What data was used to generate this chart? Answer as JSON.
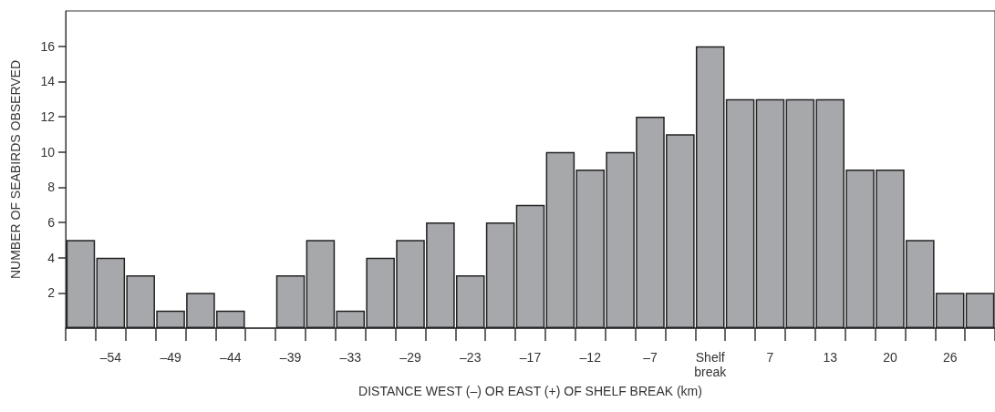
{
  "chart_data": {
    "type": "bar",
    "xlabel": "DISTANCE WEST (–) OR EAST (+) OF SHELF BREAK (km)",
    "ylabel": "NUMBER OF SEABIRDS OBSERVED",
    "categories": [
      null,
      "–54",
      null,
      "–49",
      null,
      "–44",
      null,
      "–39",
      null,
      "–33",
      null,
      "–29",
      null,
      "–23",
      null,
      "–17",
      null,
      "–12",
      null,
      "–7",
      null,
      "Shelf\nbreak",
      null,
      "7",
      null,
      "13",
      null,
      "20",
      null,
      "26",
      null
    ],
    "values": [
      5,
      4,
      3,
      1,
      2,
      1,
      null,
      3,
      5,
      1,
      4,
      5,
      6,
      3,
      6,
      7,
      10,
      9,
      10,
      12,
      11,
      16,
      13,
      13,
      13,
      13,
      9,
      9,
      5,
      2,
      2
    ],
    "color": "#a7a8ac",
    "ylim": [
      0,
      18
    ],
    "yticks": [
      2,
      4,
      6,
      8,
      10,
      12,
      14,
      16
    ],
    "grid": false
  }
}
